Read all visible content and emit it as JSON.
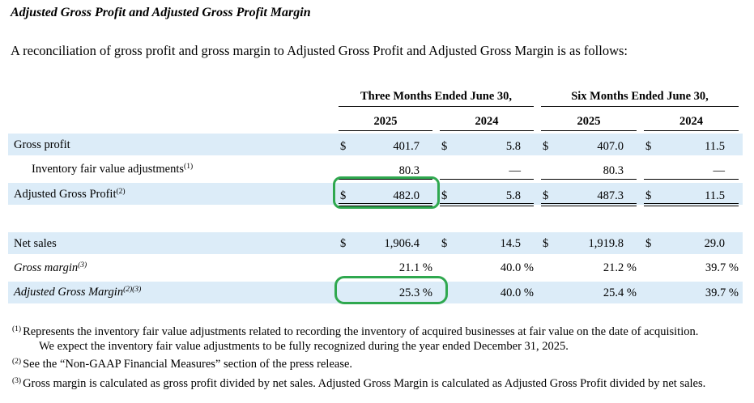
{
  "title": "Adjusted Gross Profit and Adjusted Gross Profit Margin",
  "intro": "A reconciliation of gross profit and gross margin to Adjusted Gross Profit and Adjusted Gross Margin is as follows:",
  "headers": {
    "three_months": "Three Months Ended June 30,",
    "six_months": "Six Months Ended June 30,",
    "y2025a": "2025",
    "y2024a": "2024",
    "y2025b": "2025",
    "y2024b": "2024"
  },
  "rows": [
    {
      "label": "Gross profit",
      "sup": "",
      "c1": "$",
      "v1": "401.7",
      "c2": "$",
      "v2": "5.8",
      "c3": "$",
      "v3": "407.0",
      "c4": "$",
      "v4": "11.5"
    },
    {
      "label": "Inventory fair value adjustments",
      "sup": "(1)",
      "c1": "",
      "v1": "80.3",
      "c2": "",
      "v2": "—",
      "c3": "",
      "v3": "80.3",
      "c4": "",
      "v4": "—"
    },
    {
      "label": "Adjusted Gross Profit",
      "sup": "(2)",
      "c1": "$",
      "v1": "482.0",
      "c2": "$",
      "v2": "5.8",
      "c3": "$",
      "v3": "487.3",
      "c4": "$",
      "v4": "11.5"
    },
    {
      "label": "Net sales",
      "sup": "",
      "c1": "$",
      "v1": "1,906.4",
      "c2": "$",
      "v2": "14.5",
      "c3": "$",
      "v3": "1,919.8",
      "c4": "$",
      "v4": "29.0"
    },
    {
      "label": "Gross margin",
      "sup": "(3)",
      "c1": "",
      "v1": "21.1 %",
      "c2": "",
      "v2": "40.0 %",
      "c3": "",
      "v3": "21.2 %",
      "c4": "",
      "v4": "39.7 %"
    },
    {
      "label": "Adjusted Gross Margin",
      "sup": "(2)(3)",
      "c1": "",
      "v1": "25.3 %",
      "c2": "",
      "v2": "40.0 %",
      "c3": "",
      "v3": "25.4 %",
      "c4": "",
      "v4": "39.7 %"
    }
  ],
  "footnotes": [
    {
      "mark": "(1)",
      "line1": "Represents the inventory fair value adjustments related to recording the inventory of acquired businesses at fair value on the date of acquisition.",
      "line2": "We expect the inventory fair value adjustments to be fully recognized during the year ended December 31, 2025."
    },
    {
      "mark": "(2)",
      "line1": "See the “Non-GAAP Financial Measures” section of the press release."
    },
    {
      "mark": "(3)",
      "line1": "Gross margin is calculated as gross profit divided by net sales. Adjusted Gross Margin is calculated as Adjusted Gross Profit divided by net sales."
    }
  ],
  "highlight_color": "#2fa84f",
  "band_color": "#dcecf8"
}
